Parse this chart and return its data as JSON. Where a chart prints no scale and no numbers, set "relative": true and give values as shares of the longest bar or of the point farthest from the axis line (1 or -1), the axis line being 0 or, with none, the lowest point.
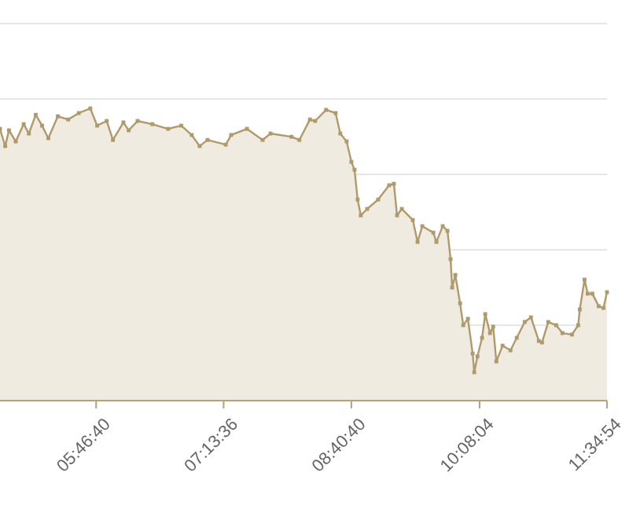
{
  "chart_data": {
    "type": "area",
    "relative": true,
    "grid": true,
    "marker": "square",
    "xlim": [
      4.686,
      11.582
    ],
    "xticks": [
      {
        "value": 5.77778,
        "label": "05:46:40"
      },
      {
        "value": 7.22667,
        "label": "07:13:36"
      },
      {
        "value": 8.67778,
        "label": "08:40:40"
      },
      {
        "value": 10.13444,
        "label": "10:08:04"
      },
      {
        "value": 11.58167,
        "label": "11:34:54"
      }
    ],
    "series": [
      {
        "color": "#b09a6a",
        "x": [
          4.686,
          4.745,
          4.788,
          4.865,
          4.955,
          5.014,
          5.092,
          5.164,
          5.235,
          5.343,
          5.461,
          5.581,
          5.712,
          5.79,
          5.898,
          5.969,
          6.088,
          6.148,
          6.249,
          6.417,
          6.596,
          6.745,
          6.864,
          6.954,
          7.043,
          7.251,
          7.312,
          7.491,
          7.67,
          7.759,
          7.998,
          8.087,
          8.207,
          8.266,
          8.391,
          8.499,
          8.552,
          8.624,
          8.678,
          8.714,
          8.749,
          8.785,
          8.857,
          8.982,
          9.107,
          9.161,
          9.197,
          9.251,
          9.376,
          9.43,
          9.484,
          9.609,
          9.644,
          9.716,
          9.77,
          9.805,
          9.823,
          9.859,
          9.913,
          9.949,
          10.002,
          10.056,
          10.074,
          10.11,
          10.163,
          10.199,
          10.253,
          10.289,
          10.325,
          10.396,
          10.486,
          10.557,
          10.647,
          10.718,
          10.808,
          10.844,
          10.915,
          11.005,
          11.076,
          11.184,
          11.255,
          11.273,
          11.327,
          11.363,
          11.416,
          11.488,
          11.542,
          11.582
        ],
        "values": [
          0.93,
          0.871,
          0.925,
          0.887,
          0.946,
          0.914,
          0.978,
          0.941,
          0.898,
          0.973,
          0.962,
          0.984,
          1.0,
          0.941,
          0.957,
          0.892,
          0.952,
          0.925,
          0.957,
          0.946,
          0.93,
          0.941,
          0.909,
          0.871,
          0.892,
          0.876,
          0.909,
          0.93,
          0.892,
          0.914,
          0.903,
          0.892,
          0.962,
          0.957,
          0.995,
          0.984,
          0.914,
          0.887,
          0.817,
          0.79,
          0.688,
          0.634,
          0.656,
          0.688,
          0.737,
          0.742,
          0.634,
          0.656,
          0.618,
          0.543,
          0.597,
          0.575,
          0.543,
          0.597,
          0.581,
          0.484,
          0.387,
          0.43,
          0.333,
          0.258,
          0.28,
          0.161,
          0.097,
          0.151,
          0.215,
          0.296,
          0.231,
          0.253,
          0.134,
          0.188,
          0.172,
          0.215,
          0.269,
          0.285,
          0.204,
          0.199,
          0.269,
          0.258,
          0.231,
          0.226,
          0.258,
          0.312,
          0.414,
          0.366,
          0.366,
          0.323,
          0.317,
          0.371
        ]
      }
    ]
  }
}
